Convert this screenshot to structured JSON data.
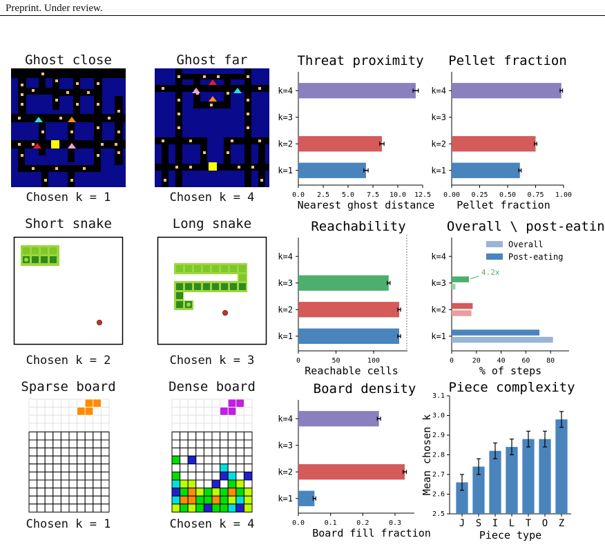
{
  "header": "Preprint. Under review.",
  "colors": {
    "k1": "#4a84bd",
    "k2": "#d55a5a",
    "k3": "#4caf6d",
    "k4": "#8a80bd",
    "wall": "#0a0a8c",
    "maze": "#000000",
    "pellet": "#f5c08a",
    "pacman": "#ffff00",
    "overall": "#98b4d6",
    "postEating": "#4a84bd",
    "snakeLight": "#9cd63c",
    "snakeDark": "#2f8a1e",
    "food": "#c0392b"
  },
  "panels": {
    "ghost_close": {
      "title": "Ghost close",
      "caption": "Chosen k = 1"
    },
    "ghost_far": {
      "title": "Ghost far",
      "caption": "Chosen k = 4"
    },
    "short_snake": {
      "title": "Short snake",
      "caption": "Chosen k = 2"
    },
    "long_snake": {
      "title": "Long snake",
      "caption": "Chosen k = 3"
    },
    "sparse_board": {
      "title": "Sparse board",
      "caption": "Chosen k = 1"
    },
    "dense_board": {
      "title": "Dense board",
      "caption": "Chosen k = 4"
    }
  },
  "chart_data": [
    {
      "id": "threat",
      "type": "bar",
      "orientation": "horizontal",
      "title": "Threat proximity",
      "xlabel": "Nearest ghost distance",
      "ylabel": "",
      "categories": [
        "k=1",
        "k=2",
        "k=3",
        "k=4"
      ],
      "values": [
        6.8,
        8.4,
        null,
        11.8
      ],
      "errors": [
        0.15,
        0.15,
        0,
        0.2
      ],
      "xlim": [
        0,
        12.5
      ],
      "xticks": [
        "0.0",
        "2.5",
        "5.0",
        "7.5",
        "10.0",
        "12.5"
      ],
      "grid": false
    },
    {
      "id": "pellet",
      "type": "bar",
      "orientation": "horizontal",
      "title": "Pellet fraction",
      "xlabel": "Pellet fraction",
      "ylabel": "",
      "categories": [
        "k=1",
        "k=2",
        "k=3",
        "k=4"
      ],
      "values": [
        0.61,
        0.75,
        null,
        0.98
      ],
      "errors": [
        0.005,
        0.005,
        0,
        0.005
      ],
      "xlim": [
        0,
        1.0
      ],
      "xticks": [
        "0.00",
        "0.25",
        "0.50",
        "0.75",
        "1.00"
      ],
      "grid": false
    },
    {
      "id": "reach",
      "type": "bar",
      "orientation": "horizontal",
      "title": "Reachability",
      "xlabel": "Reachable cells",
      "ylabel": "",
      "categories": [
        "k=1",
        "k=2",
        "k=3",
        "k=4"
      ],
      "values": [
        134,
        134,
        120,
        null
      ],
      "errors": [
        1,
        1,
        1,
        0
      ],
      "xlim": [
        0,
        145
      ],
      "xticks": [
        "0",
        "50",
        "100"
      ],
      "refline": 144,
      "grid": false
    },
    {
      "id": "overall",
      "type": "bar",
      "orientation": "horizontal",
      "title": "Overall \\ post-eating",
      "xlabel": "% of steps",
      "ylabel": "",
      "categories": [
        "k=1",
        "k=2",
        "k=3",
        "k=4"
      ],
      "series": [
        {
          "name": "Overall",
          "values": [
            82,
            16,
            3,
            0
          ]
        },
        {
          "name": "Post-eating",
          "values": [
            71,
            17,
            14,
            0
          ]
        }
      ],
      "annotation": "4.2x",
      "legend": "top-right",
      "xlim": [
        0,
        95
      ],
      "xticks": [
        "0",
        "20",
        "40",
        "60",
        "80"
      ],
      "grid": false
    },
    {
      "id": "density",
      "type": "bar",
      "orientation": "horizontal",
      "title": "Board density",
      "xlabel": "Board fill fraction",
      "ylabel": "",
      "categories": [
        "k=1",
        "k=2",
        "k=3",
        "k=4"
      ],
      "values": [
        0.05,
        0.33,
        null,
        0.25
      ],
      "errors": [
        0.002,
        0.003,
        0,
        0.003
      ],
      "xlim": [
        0,
        0.36
      ],
      "xticks": [
        "0.0",
        "0.1",
        "0.2",
        "0.3"
      ],
      "grid": false
    },
    {
      "id": "piece",
      "type": "bar",
      "orientation": "vertical",
      "title": "Piece complexity",
      "xlabel": "Piece type",
      "ylabel": "Mean chosen k",
      "categories": [
        "J",
        "S",
        "I",
        "L",
        "T",
        "O",
        "Z"
      ],
      "values": [
        2.66,
        2.74,
        2.82,
        2.84,
        2.88,
        2.88,
        2.98
      ],
      "errors": [
        0.04,
        0.04,
        0.04,
        0.04,
        0.04,
        0.04,
        0.04
      ],
      "ylim": [
        2.5,
        3.1
      ],
      "yticks": [
        "2.5",
        "2.6",
        "2.7",
        "2.8",
        "2.9",
        "3.0",
        "3.1"
      ],
      "grid": false
    }
  ]
}
